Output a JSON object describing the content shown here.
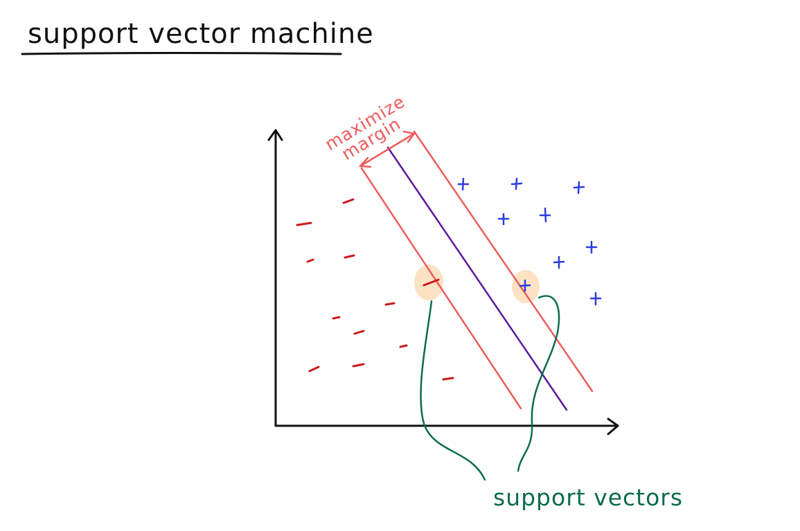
{
  "title": "support vector machine",
  "margin_label": {
    "line1": "maximize",
    "line2": "margin"
  },
  "support_vectors_label": "support vectors",
  "colors": {
    "ink": "#111111",
    "negative": "#cc1a1a",
    "positive": "#2b3be0",
    "margin": "#ef5b5b",
    "hyperplane": "#5a189a",
    "callout": "#0b6b4e",
    "highlight": "#fde3c4"
  },
  "icons": {
    "negative_point": "minus-mark",
    "positive_point": "plus-mark"
  }
}
